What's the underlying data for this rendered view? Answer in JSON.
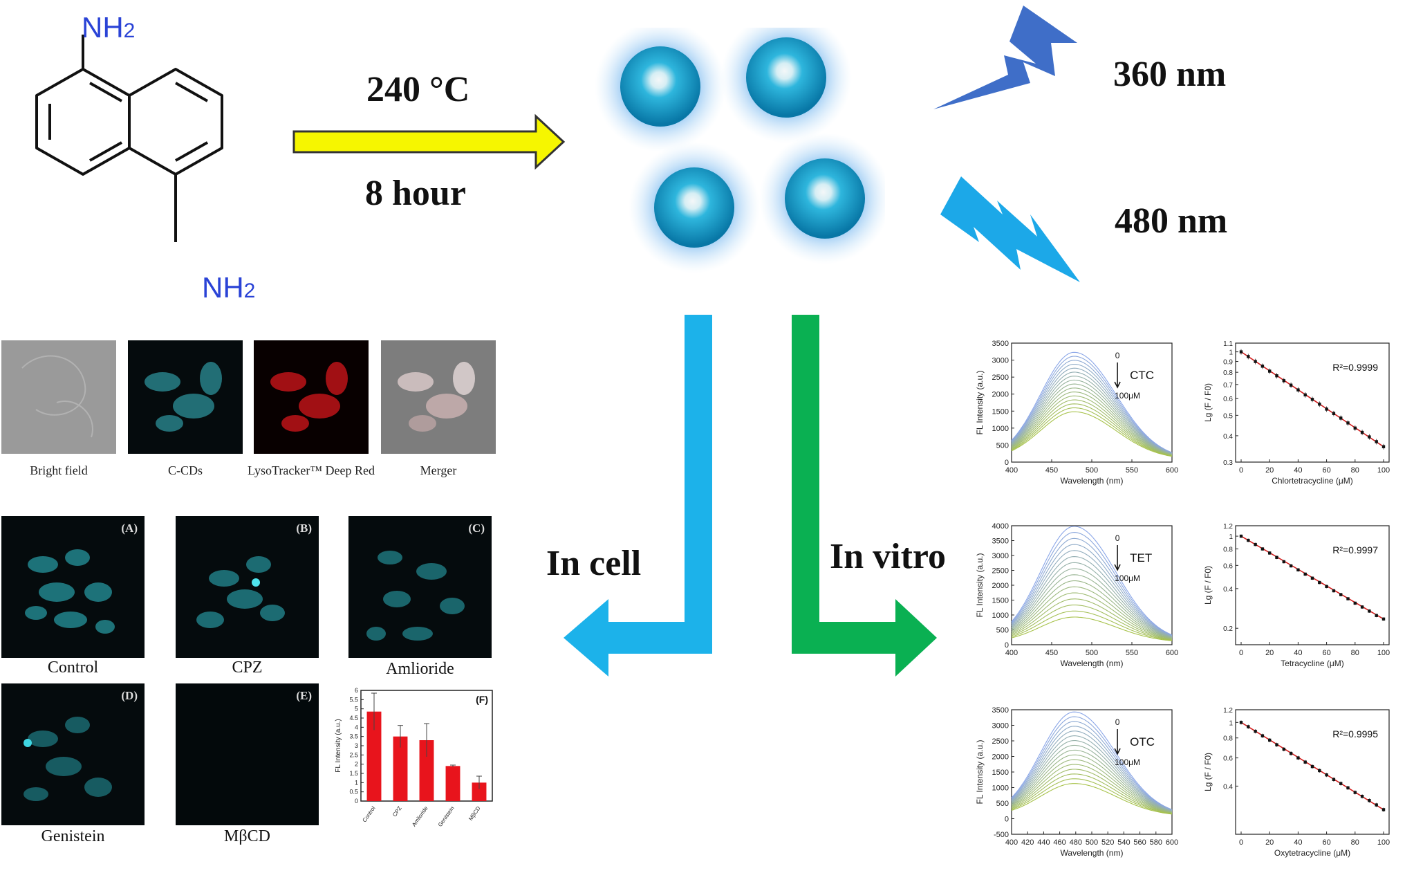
{
  "molecule": {
    "amine_top": "NH2",
    "amine_bottom": "NH2"
  },
  "synthesis": {
    "temperature": "240 °C",
    "time": "8 hour"
  },
  "excitation": {
    "ex": "360 nm",
    "em": "480 nm"
  },
  "routes": {
    "in_cell": "In cell",
    "in_vitro": "In vitro"
  },
  "colocalization": {
    "captions": [
      "Bright field",
      "C-CDs",
      "LysoTracker™ Deep Red",
      "Merger"
    ]
  },
  "inhibitor_panels": [
    {
      "label": "(A)",
      "caption": "Control"
    },
    {
      "label": "(B)",
      "caption": "CPZ"
    },
    {
      "label": "(C)",
      "caption": "Amlioride"
    },
    {
      "label": "(D)",
      "caption": "Genistein"
    },
    {
      "label": "(E)",
      "caption": "MβCD"
    }
  ],
  "chart_data": [
    {
      "type": "bar",
      "panel_label": "(F)",
      "categories": [
        "Control",
        "CPZ",
        "Amlioride",
        "Genistein",
        "MβCD"
      ],
      "values": [
        4.85,
        3.5,
        3.3,
        1.9,
        1.0
      ],
      "errors": [
        1.0,
        0.6,
        0.9,
        0.05,
        0.35
      ],
      "ylabel": "FL Intensity (a.u.)",
      "ylim": [
        0,
        6
      ],
      "yticks": [
        "0",
        "0.5",
        "1",
        "1.5",
        "2",
        "2.5",
        "3",
        "3.5",
        "4",
        "4.5",
        "5",
        "5.5",
        "6"
      ],
      "color": "#e8141c"
    },
    {
      "type": "line",
      "analyte": "CTC",
      "arrow_top": "0",
      "arrow_bottom": "100μM",
      "xlabel": "Wavelength (nm)",
      "ylabel": "FL Intensity (a.u.)",
      "xlim": [
        400,
        600
      ],
      "ylim": [
        0,
        3500
      ],
      "xticks": [
        "400",
        "450",
        "500",
        "550",
        "600"
      ],
      "yticks": [
        "0",
        "500",
        "1000",
        "1500",
        "2000",
        "2500",
        "3000",
        "3500"
      ],
      "peak_x": 478,
      "peak_max": 3150,
      "peak_min": 1400,
      "curves": 16
    },
    {
      "type": "scatter",
      "r2": "R²=0.9999",
      "xlabel": "Chlortetracycline (μM)",
      "ylabel": "Lg (F / F0)",
      "log_y": true,
      "xlim": [
        0,
        100
      ],
      "ylim": [
        0.3,
        1.1
      ],
      "xticks": [
        "0",
        "20",
        "40",
        "60",
        "80",
        "100"
      ],
      "yticks": [
        "0.3",
        "0.4",
        "0.5",
        "0.6",
        "0.7",
        "0.8",
        "0.9",
        "1",
        "1.1"
      ],
      "x": [
        0,
        5,
        10,
        15,
        20,
        25,
        30,
        35,
        40,
        45,
        50,
        55,
        60,
        65,
        70,
        75,
        80,
        85,
        90,
        95,
        100
      ],
      "y": [
        1.0,
        0.95,
        0.9,
        0.855,
        0.81,
        0.77,
        0.73,
        0.695,
        0.66,
        0.625,
        0.595,
        0.565,
        0.535,
        0.51,
        0.485,
        0.46,
        0.435,
        0.415,
        0.395,
        0.375,
        0.355
      ]
    },
    {
      "type": "line",
      "analyte": "TET",
      "arrow_top": "0",
      "arrow_bottom": "100μM",
      "xlabel": "Wavelength (nm)",
      "ylabel": "FL Intensity (a.u.)",
      "xlim": [
        400,
        600
      ],
      "ylim": [
        0,
        4000
      ],
      "xticks": [
        "400",
        "450",
        "500",
        "550",
        "600"
      ],
      "yticks": [
        "0",
        "500",
        "1000",
        "1500",
        "2000",
        "2500",
        "3000",
        "3500",
        "4000"
      ],
      "peak_x": 478,
      "peak_max": 3900,
      "peak_min": 850,
      "curves": 16
    },
    {
      "type": "scatter",
      "r2": "R²=0.9997",
      "xlabel": "Tetracycline (μM)",
      "ylabel": "Lg (F / F0)",
      "log_y": true,
      "xlim": [
        0,
        100
      ],
      "ylim": [
        0.15,
        1.2
      ],
      "xticks": [
        "0",
        "20",
        "40",
        "60",
        "80",
        "100"
      ],
      "yticks": [
        "0.2",
        "0.4",
        "0.6",
        "0.8",
        "1",
        "1.2"
      ],
      "x": [
        0,
        5,
        10,
        15,
        20,
        25,
        30,
        35,
        40,
        45,
        50,
        55,
        60,
        65,
        70,
        75,
        80,
        85,
        90,
        95,
        100
      ],
      "y": [
        1.0,
        0.93,
        0.865,
        0.8,
        0.745,
        0.69,
        0.64,
        0.595,
        0.555,
        0.515,
        0.48,
        0.445,
        0.415,
        0.385,
        0.36,
        0.335,
        0.31,
        0.29,
        0.27,
        0.25,
        0.235
      ]
    },
    {
      "type": "line",
      "analyte": "OTC",
      "arrow_top": "0",
      "arrow_bottom": "100μM",
      "xlabel": "Wavelength (nm)",
      "ylabel": "FL Intensity (a.u.)",
      "xlim": [
        400,
        600
      ],
      "ylim": [
        -500,
        3500
      ],
      "xticks": [
        "400",
        "420",
        "440",
        "460",
        "480",
        "500",
        "520",
        "540",
        "560",
        "580",
        "600"
      ],
      "yticks": [
        "-500",
        "0",
        "500",
        "1000",
        "1500",
        "2000",
        "2500",
        "3000",
        "3500"
      ],
      "peak_x": 478,
      "peak_max": 3350,
      "peak_min": 1050,
      "curves": 16
    },
    {
      "type": "scatter",
      "r2": "R²=0.9995",
      "xlabel": "Oxytetracycline (μM)",
      "ylabel": "Lg (F / F0)",
      "log_y": true,
      "xlim": [
        0,
        100
      ],
      "ylim": [
        0.2,
        1.2
      ],
      "xticks": [
        "0",
        "20",
        "40",
        "60",
        "80",
        "100"
      ],
      "yticks": [
        "0.4",
        "0.6",
        "0.8",
        "1",
        "1.2"
      ],
      "x": [
        0,
        5,
        10,
        15,
        20,
        25,
        30,
        35,
        40,
        45,
        50,
        55,
        60,
        65,
        70,
        75,
        80,
        85,
        90,
        95,
        100
      ],
      "y": [
        1.0,
        0.94,
        0.88,
        0.825,
        0.775,
        0.725,
        0.68,
        0.64,
        0.6,
        0.565,
        0.53,
        0.5,
        0.47,
        0.44,
        0.415,
        0.39,
        0.365,
        0.345,
        0.325,
        0.305,
        0.285
      ]
    }
  ]
}
